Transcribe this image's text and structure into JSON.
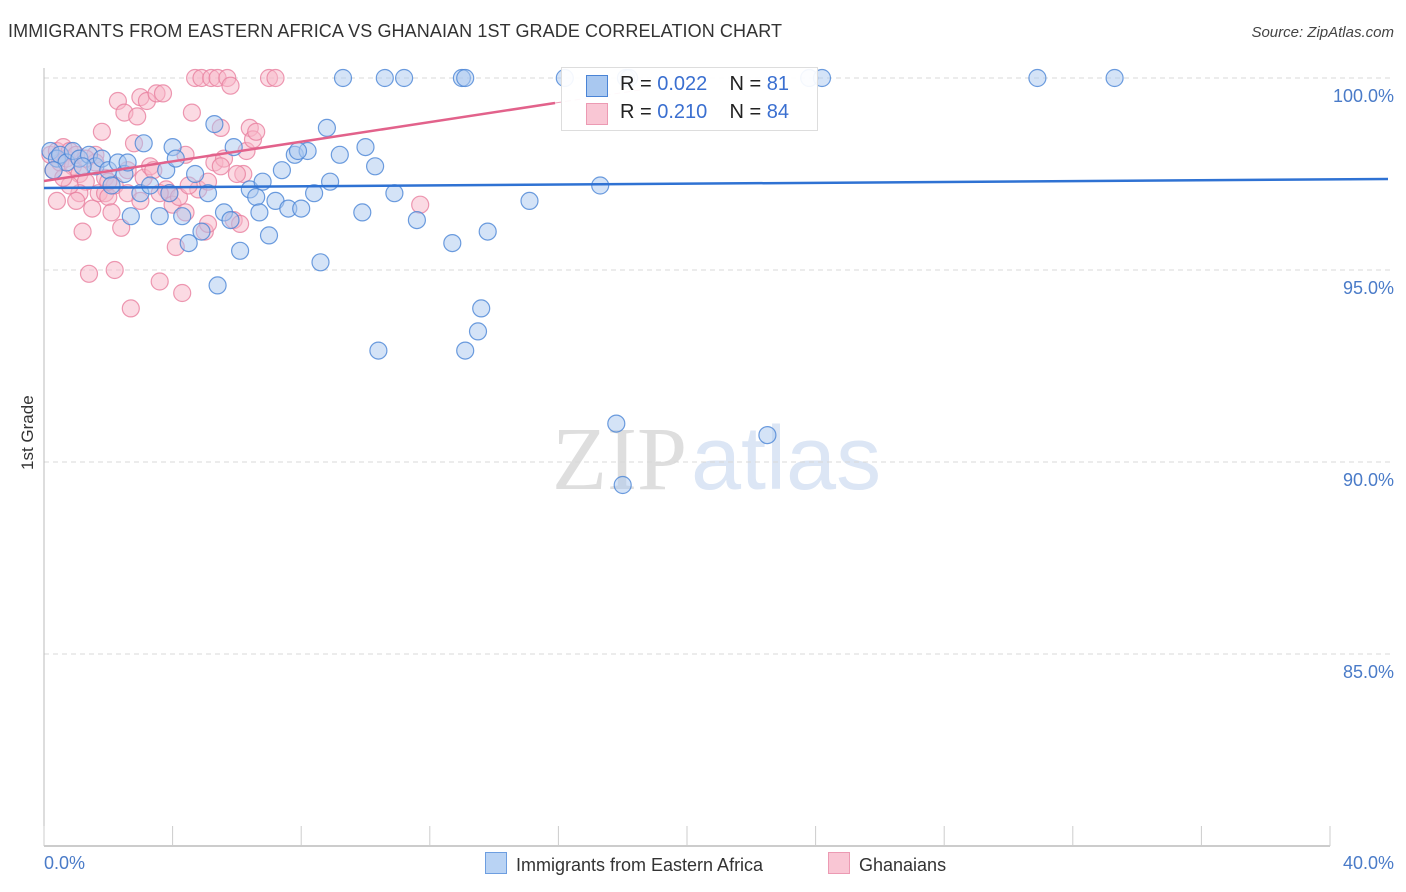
{
  "header": {
    "title": "IMMIGRANTS FROM EASTERN AFRICA VS GHANAIAN 1ST GRADE CORRELATION CHART",
    "source": "Source: ZipAtlas.com"
  },
  "axes": {
    "y_label": "1st Grade",
    "y_ticks": [
      "100.0%",
      "95.0%",
      "90.0%",
      "85.0%"
    ],
    "x_tick_left": "0.0%",
    "x_tick_right": "40.0%"
  },
  "stats_legend": {
    "series": [
      {
        "r_label": "R =",
        "r_value": "0.022",
        "n_label": "N =",
        "n_value": "81"
      },
      {
        "r_label": "R =",
        "r_value": "0.210",
        "n_label": "N =",
        "n_value": "84"
      }
    ]
  },
  "bottom_legend": {
    "items": [
      {
        "label": "Immigrants from Eastern Africa"
      },
      {
        "label": "Ghanaians"
      }
    ]
  },
  "watermark": {
    "zip": "ZIP",
    "atlas": "atlas"
  },
  "colors": {
    "blue_fill": "#a9c8f0",
    "blue_stroke": "#4a84d6",
    "blue_line": "#2f72d3",
    "pink_fill": "#f7b6c8",
    "pink_stroke": "#e8809f",
    "pink_line": "#e2628b",
    "tick_text": "#4a7bc8",
    "grid": "#d8d8d8"
  },
  "chart_data": {
    "type": "scatter",
    "title": "IMMIGRANTS FROM EASTERN AFRICA VS GHANAIAN 1ST GRADE CORRELATION CHART",
    "xlabel": "",
    "ylabel": "1st Grade",
    "xlim": [
      0,
      40
    ],
    "ylim": [
      80.5,
      100.5
    ],
    "x_tick_labels": [
      "0.0%",
      "40.0%"
    ],
    "y_tick_labels": [
      "85.0%",
      "90.0%",
      "95.0%",
      "100.0%"
    ],
    "grid": true,
    "legend_position": "bottom",
    "series": [
      {
        "name": "Immigrants from Eastern Africa",
        "color": "#a9c8f0",
        "R": 0.022,
        "N": 81,
        "trend": {
          "x": [
            0,
            42
          ],
          "y": [
            97.2,
            97.4
          ]
        },
        "points": [
          [
            0.2,
            98.1
          ],
          [
            0.4,
            97.9
          ],
          [
            0.5,
            98.0
          ],
          [
            0.7,
            97.8
          ],
          [
            0.9,
            98.1
          ],
          [
            1.1,
            97.9
          ],
          [
            1.4,
            98.0
          ],
          [
            1.6,
            97.7
          ],
          [
            1.8,
            97.9
          ],
          [
            2.0,
            97.6
          ],
          [
            2.1,
            97.2
          ],
          [
            2.3,
            97.8
          ],
          [
            2.5,
            97.5
          ],
          [
            2.7,
            96.4
          ],
          [
            3.1,
            98.3
          ],
          [
            3.0,
            97.0
          ],
          [
            3.3,
            97.2
          ],
          [
            3.6,
            96.4
          ],
          [
            3.8,
            97.6
          ],
          [
            4.0,
            98.2
          ],
          [
            4.1,
            97.9
          ],
          [
            4.3,
            96.4
          ],
          [
            4.5,
            95.7
          ],
          [
            4.7,
            97.5
          ],
          [
            4.9,
            96.0
          ],
          [
            5.1,
            97.0
          ],
          [
            5.3,
            98.8
          ],
          [
            5.4,
            94.6
          ],
          [
            5.6,
            96.5
          ],
          [
            5.8,
            96.3
          ],
          [
            5.9,
            98.2
          ],
          [
            6.1,
            95.5
          ],
          [
            6.4,
            97.1
          ],
          [
            6.6,
            96.9
          ],
          [
            6.8,
            97.3
          ],
          [
            7.0,
            95.9
          ],
          [
            7.2,
            96.8
          ],
          [
            7.4,
            97.6
          ],
          [
            7.6,
            96.6
          ],
          [
            7.8,
            98.0
          ],
          [
            8.0,
            96.6
          ],
          [
            8.2,
            98.1
          ],
          [
            8.4,
            97.0
          ],
          [
            8.6,
            95.2
          ],
          [
            8.8,
            98.7
          ],
          [
            8.9,
            97.3
          ],
          [
            9.2,
            98.0
          ],
          [
            9.3,
            100.0
          ],
          [
            9.9,
            96.5
          ],
          [
            10.0,
            98.2
          ],
          [
            10.3,
            97.7
          ],
          [
            10.4,
            92.9
          ],
          [
            10.6,
            100.0
          ],
          [
            10.9,
            97.0
          ],
          [
            11.2,
            100.0
          ],
          [
            11.6,
            96.3
          ],
          [
            12.7,
            95.7
          ],
          [
            13.0,
            100.0
          ],
          [
            13.1,
            92.9
          ],
          [
            13.1,
            100.0
          ],
          [
            13.6,
            94.0
          ],
          [
            13.5,
            93.4
          ],
          [
            13.8,
            96.0
          ],
          [
            15.1,
            96.8
          ],
          [
            16.2,
            100.0
          ],
          [
            17.3,
            97.2
          ],
          [
            17.8,
            91.0
          ],
          [
            18.0,
            89.4
          ],
          [
            18.1,
            100.0
          ],
          [
            18.2,
            100.0
          ],
          [
            22.5,
            90.7
          ],
          [
            23.8,
            100.0
          ],
          [
            24.2,
            100.0
          ],
          [
            30.9,
            100.0
          ],
          [
            33.3,
            100.0
          ],
          [
            0.3,
            97.6
          ],
          [
            1.2,
            97.7
          ],
          [
            2.6,
            97.8
          ],
          [
            3.9,
            97.0
          ],
          [
            6.7,
            96.5
          ],
          [
            7.9,
            98.1
          ]
        ]
      },
      {
        "name": "Ghanaians",
        "color": "#f7b6c8",
        "R": 0.21,
        "N": 84,
        "trend": {
          "x": [
            0,
            16
          ],
          "y": [
            97.3,
            99.4
          ]
        },
        "points": [
          [
            0.2,
            98.0
          ],
          [
            0.3,
            97.6
          ],
          [
            0.4,
            98.1
          ],
          [
            0.5,
            97.8
          ],
          [
            0.6,
            98.2
          ],
          [
            0.7,
            97.9
          ],
          [
            0.8,
            98.1
          ],
          [
            0.9,
            97.7
          ],
          [
            1.0,
            98.0
          ],
          [
            1.1,
            97.5
          ],
          [
            1.3,
            97.3
          ],
          [
            1.5,
            96.6
          ],
          [
            1.6,
            98.0
          ],
          [
            1.1,
            97.0
          ],
          [
            1.2,
            96.0
          ],
          [
            1.4,
            94.9
          ],
          [
            1.7,
            97.0
          ],
          [
            1.8,
            98.6
          ],
          [
            1.9,
            97.0
          ],
          [
            2.0,
            96.9
          ],
          [
            2.1,
            96.5
          ],
          [
            2.2,
            95.0
          ],
          [
            2.3,
            99.4
          ],
          [
            2.4,
            96.1
          ],
          [
            2.5,
            99.1
          ],
          [
            2.6,
            97.6
          ],
          [
            2.8,
            98.3
          ],
          [
            2.9,
            99.0
          ],
          [
            3.0,
            99.5
          ],
          [
            2.7,
            94.0
          ],
          [
            3.1,
            97.4
          ],
          [
            3.2,
            99.4
          ],
          [
            3.3,
            97.7
          ],
          [
            3.5,
            99.6
          ],
          [
            3.6,
            94.7
          ],
          [
            3.7,
            99.6
          ],
          [
            3.8,
            97.1
          ],
          [
            3.9,
            97.0
          ],
          [
            4.0,
            96.7
          ],
          [
            4.1,
            95.6
          ],
          [
            4.2,
            96.9
          ],
          [
            4.3,
            94.4
          ],
          [
            4.4,
            98.0
          ],
          [
            4.6,
            99.1
          ],
          [
            4.4,
            96.5
          ],
          [
            4.7,
            100.0
          ],
          [
            4.9,
            100.0
          ],
          [
            5.0,
            96.0
          ],
          [
            5.1,
            96.2
          ],
          [
            5.2,
            100.0
          ],
          [
            5.3,
            97.8
          ],
          [
            5.4,
            100.0
          ],
          [
            5.5,
            98.7
          ],
          [
            5.6,
            97.9
          ],
          [
            5.7,
            100.0
          ],
          [
            5.8,
            99.8
          ],
          [
            5.9,
            96.3
          ],
          [
            6.1,
            96.2
          ],
          [
            6.2,
            97.5
          ],
          [
            6.3,
            98.1
          ],
          [
            6.4,
            98.7
          ],
          [
            6.5,
            98.4
          ],
          [
            6.6,
            98.6
          ],
          [
            7.0,
            100.0
          ],
          [
            7.2,
            100.0
          ],
          [
            11.7,
            96.7
          ],
          [
            0.8,
            97.2
          ],
          [
            1.0,
            96.8
          ],
          [
            1.6,
            97.8
          ],
          [
            1.9,
            97.4
          ],
          [
            2.2,
            97.2
          ],
          [
            2.6,
            97.0
          ],
          [
            3.4,
            97.6
          ],
          [
            3.6,
            97.0
          ],
          [
            4.8,
            97.1
          ],
          [
            5.1,
            97.3
          ],
          [
            5.5,
            97.7
          ],
          [
            6.0,
            97.5
          ],
          [
            0.4,
            96.8
          ],
          [
            0.6,
            97.4
          ],
          [
            1.3,
            97.9
          ],
          [
            2.0,
            97.3
          ],
          [
            3.0,
            96.8
          ],
          [
            4.5,
            97.2
          ]
        ]
      }
    ]
  }
}
